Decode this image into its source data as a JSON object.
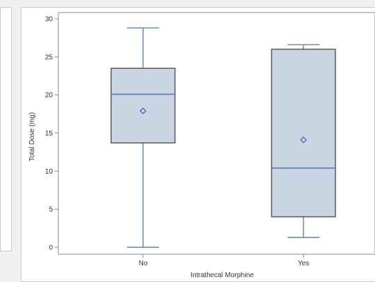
{
  "chart_data": {
    "type": "box",
    "xlabel": "Intrathecal Morphine",
    "ylabel": "Total Dose (mg)",
    "ylim": [
      0,
      30
    ],
    "yticks": [
      0,
      5,
      10,
      15,
      20,
      25,
      30
    ],
    "categories": [
      "No",
      "Yes"
    ],
    "boxes": [
      {
        "category": "No",
        "min": 0.0,
        "q1": 13.7,
        "median": 20.1,
        "q3": 23.5,
        "max": 28.8,
        "mean": 17.9
      },
      {
        "category": "Yes",
        "min": 1.3,
        "q1": 4.0,
        "median": 10.4,
        "q3": 26.0,
        "max": 26.6,
        "mean": 14.1
      }
    ],
    "grid": false,
    "colors": {
      "box_fill": "#c9d5e3",
      "box_edge": "#444444",
      "median": "#4a72b8",
      "whisker": "#5b82c4",
      "mean_marker": "#3b62b0"
    }
  }
}
